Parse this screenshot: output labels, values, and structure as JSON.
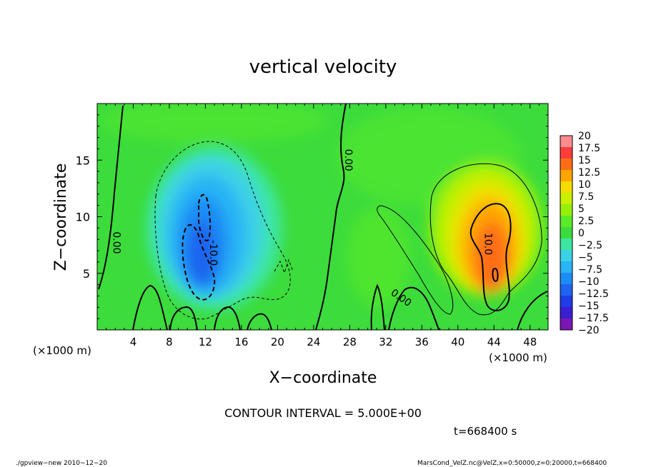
{
  "chart_data": {
    "type": "heatmap",
    "title": "vertical velocity",
    "xlabel": "X−coordinate",
    "ylabel": "Z−coordinate",
    "x_unit": "(×1000 m)",
    "x_unit_right": "(×1000 m)",
    "xlim": [
      0,
      50
    ],
    "ylim": [
      0,
      20
    ],
    "xticks": [
      4,
      8,
      12,
      16,
      20,
      24,
      28,
      32,
      36,
      40,
      44,
      48
    ],
    "xtick_labels": [
      "4",
      "8",
      "12",
      "16",
      "20",
      "24",
      "28",
      "32",
      "36",
      "40",
      "44",
      "48"
    ],
    "yticks": [
      5,
      10,
      15
    ],
    "ytick_labels": [
      "5",
      "10",
      "15"
    ],
    "colorbar": {
      "levels": [
        -20,
        -17.5,
        -15,
        -12.5,
        -10,
        -7.5,
        -5,
        -2.5,
        0,
        2.5,
        5,
        7.5,
        10,
        12.5,
        15,
        17.5,
        20
      ],
      "labels": [
        "20",
        "17.5",
        "15",
        "12.5",
        "10",
        "7.5",
        "5",
        "2.5",
        "0",
        "−2.5",
        "−5",
        "−7.5",
        "−10",
        "−12.5",
        "−15",
        "−17.5",
        "−20"
      ],
      "colors": [
        "#7b16b4",
        "#3a1ed2",
        "#1f3ce6",
        "#1e64f0",
        "#1e8cf5",
        "#28b4f5",
        "#3cd2e6",
        "#3ce6a0",
        "#3cdc3c",
        "#5aeb28",
        "#96f00a",
        "#c8f000",
        "#f5dc00",
        "#ffa500",
        "#ff6e14",
        "#ff3c3c",
        "#ff8c8c"
      ]
    },
    "features": [
      {
        "kind": "updraft",
        "x": 43.5,
        "z": 6.5,
        "peak": 12.5
      },
      {
        "kind": "downdraft",
        "x": 11.5,
        "z": 7.0,
        "peak": -12.5
      }
    ],
    "contour_labels": [
      {
        "text": "0.00",
        "x": 27.5,
        "z": 15.0
      },
      {
        "text": "0.00",
        "x": 1.8,
        "z": 7.7
      },
      {
        "text": "0.00",
        "x": 33.5,
        "z": 2.6
      },
      {
        "text": "10.0",
        "x": 43.0,
        "z": 7.6
      },
      {
        "text": "-10.0",
        "x": 12.5,
        "z": 6.8
      }
    ],
    "contour_interval_text": "CONTOUR INTERVAL = 5.000E+00",
    "time_text": "t=668400 s"
  },
  "footer": {
    "left": "./gpview−new  2010−12−20",
    "right": "MarsCond_VelZ.nc@VelZ,x=0:50000,z=0:20000,t=668400"
  }
}
